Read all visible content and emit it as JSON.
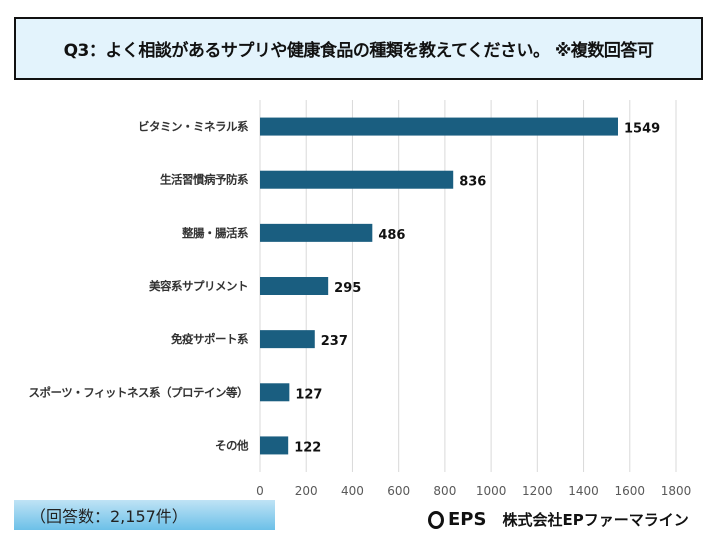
{
  "title": "Q3：よく相談があるサプリや健康食品の種類を教えてください。 ※複数回答可",
  "response_count": "（回答数：2,157件）",
  "logo": {
    "mark": "EPS",
    "company": "株式会社EPファーマライン"
  },
  "colors": {
    "bar": "#1a5e80",
    "grid": "#d9d9d9",
    "title_bg": "#e3f3fc"
  },
  "chart_data": {
    "type": "bar",
    "orientation": "horizontal",
    "categories": [
      "ビタミン・ミネラル系",
      "生活習慣病予防系",
      "整腸・腸活系",
      "美容系サプリメント",
      "免疫サポート系",
      "スポーツ・フィットネス系（プロテイン等）",
      "その他"
    ],
    "values": [
      1549,
      836,
      486,
      295,
      237,
      127,
      122
    ],
    "xlim": [
      0,
      1800
    ],
    "xticks": [
      "0",
      "200",
      "400",
      "600",
      "800",
      "1000",
      "1200",
      "1400",
      "1600",
      "1800"
    ],
    "grid": true,
    "legend": "none"
  }
}
